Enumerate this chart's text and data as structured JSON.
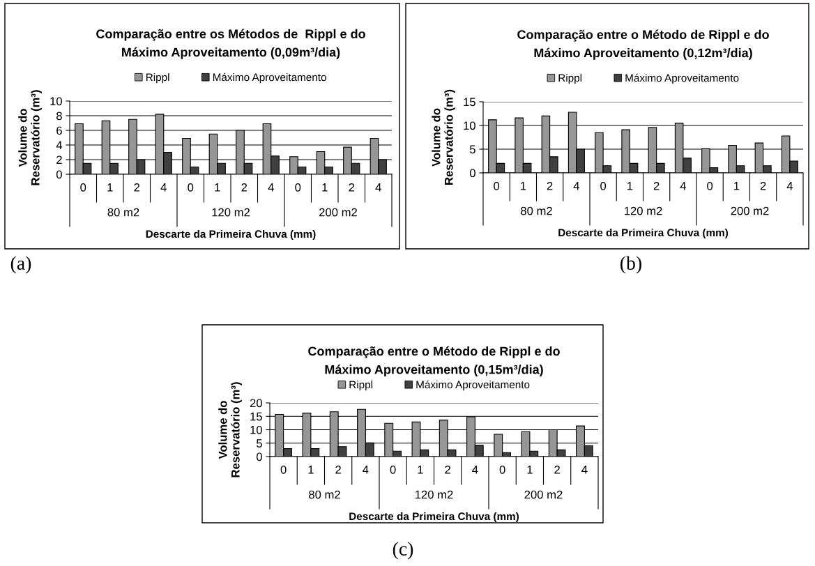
{
  "chart_data": [
    {
      "type": "bar",
      "title": "Comparação entre os Métodos de  Rippl e do\nMáximo Aproveitamento (0,09m³/dia)",
      "xlabel": "Descarte da Primeira Chuva (mm)",
      "ylabel": "Volume do\nReservatório (m³)",
      "categories": [
        "0",
        "1",
        "2",
        "4",
        "0",
        "1",
        "2",
        "4",
        "0",
        "1",
        "2",
        "4"
      ],
      "series": [
        {
          "name": "Rippl",
          "color": "#969696",
          "values": [
            6.9,
            7.3,
            7.5,
            8.2,
            4.9,
            5.5,
            6.0,
            6.9,
            2.4,
            3.1,
            3.7,
            4.9
          ]
        },
        {
          "name": "Máximo Aproveitamento",
          "color": "#404040",
          "values": [
            1.5,
            1.5,
            2.0,
            3.0,
            1.0,
            1.5,
            1.5,
            2.5,
            1.0,
            1.0,
            1.5,
            2.0
          ]
        }
      ],
      "ylim": [
        0,
        10
      ],
      "yticks": [
        0,
        2,
        4,
        6,
        8,
        10
      ],
      "grid": "y",
      "legend": "top",
      "annotations": [
        "80 m2",
        "120 m2",
        "200 m2",
        "(a)"
      ]
    },
    {
      "type": "bar",
      "title": "Comparação entre o Método de Rippl e do\nMáximo Aproveitamento (0,12m³/dia)",
      "xlabel": "Descarte da Primeira Chuva (mm)",
      "ylabel": "Volume do\nReservatório (m³)",
      "categories": [
        "0",
        "1",
        "2",
        "4",
        "0",
        "1",
        "2",
        "4",
        "0",
        "1",
        "2",
        "4"
      ],
      "series": [
        {
          "name": "Rippl",
          "color": "#969696",
          "values": [
            11.2,
            11.6,
            12.0,
            12.8,
            8.5,
            9.1,
            9.6,
            10.5,
            5.1,
            5.8,
            6.3,
            7.8
          ]
        },
        {
          "name": "Máximo Aproveitamento",
          "color": "#404040",
          "values": [
            2.0,
            2.0,
            3.4,
            5.0,
            1.5,
            2.0,
            2.0,
            3.1,
            1.1,
            1.5,
            1.5,
            2.5
          ]
        }
      ],
      "ylim": [
        0,
        15
      ],
      "yticks": [
        0,
        5,
        10,
        15
      ],
      "grid": "y",
      "legend": "top",
      "annotations": [
        "80 m2",
        "120 m2",
        "200 m2",
        "(b)"
      ]
    },
    {
      "type": "bar",
      "title": "Comparação entre o Método de Rippl e do\nMáximo Aproveitamento (0,15m³/dia)",
      "xlabel": "Descarte da Primeira Chuva (mm)",
      "ylabel": "Volume do\nReservatório (m³)",
      "categories": [
        "0",
        "1",
        "2",
        "4",
        "0",
        "1",
        "2",
        "4",
        "0",
        "1",
        "2",
        "4"
      ],
      "series": [
        {
          "name": "Rippl",
          "color": "#969696",
          "values": [
            15.7,
            16.2,
            16.7,
            17.6,
            12.4,
            12.9,
            13.6,
            14.8,
            8.3,
            9.3,
            10.0,
            11.4
          ]
        },
        {
          "name": "Máximo Aproveitamento",
          "color": "#404040",
          "values": [
            3.0,
            3.0,
            3.7,
            5.1,
            2.0,
            2.5,
            2.5,
            4.2,
            1.5,
            2.0,
            2.5,
            4.1
          ]
        }
      ],
      "ylim": [
        0,
        20
      ],
      "yticks": [
        0,
        5,
        10,
        15,
        20
      ],
      "grid": "y",
      "legend": "top",
      "annotations": [
        "80 m2",
        "120 m2",
        "200 m2",
        "(c)"
      ]
    }
  ]
}
